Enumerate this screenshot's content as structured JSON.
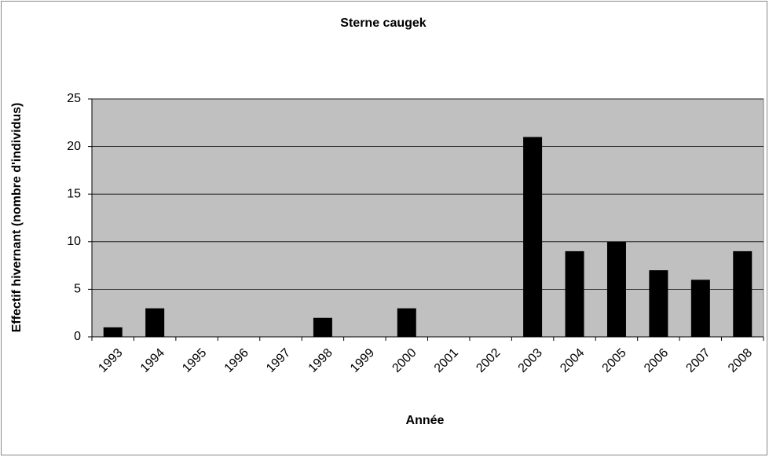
{
  "chart_data": {
    "type": "bar",
    "title": "Sterne caugek",
    "x_label": "Année",
    "y_label": "Effectif hivernant (nombre d'individus)",
    "categories": [
      "1993",
      "1994",
      "1995",
      "1996",
      "1997",
      "1998",
      "1999",
      "2000",
      "2001",
      "2002",
      "2003",
      "2004",
      "2005",
      "2006",
      "2007",
      "2008"
    ],
    "values": [
      1,
      3,
      0,
      0,
      0,
      2,
      0,
      3,
      0,
      0,
      21,
      9,
      10,
      7,
      6,
      9
    ],
    "color": "#000000",
    "plot_background": "#c0c0c0",
    "ylim": [
      0,
      25
    ],
    "yticks": [
      0,
      5,
      10,
      15,
      20,
      25
    ],
    "grid": true
  }
}
